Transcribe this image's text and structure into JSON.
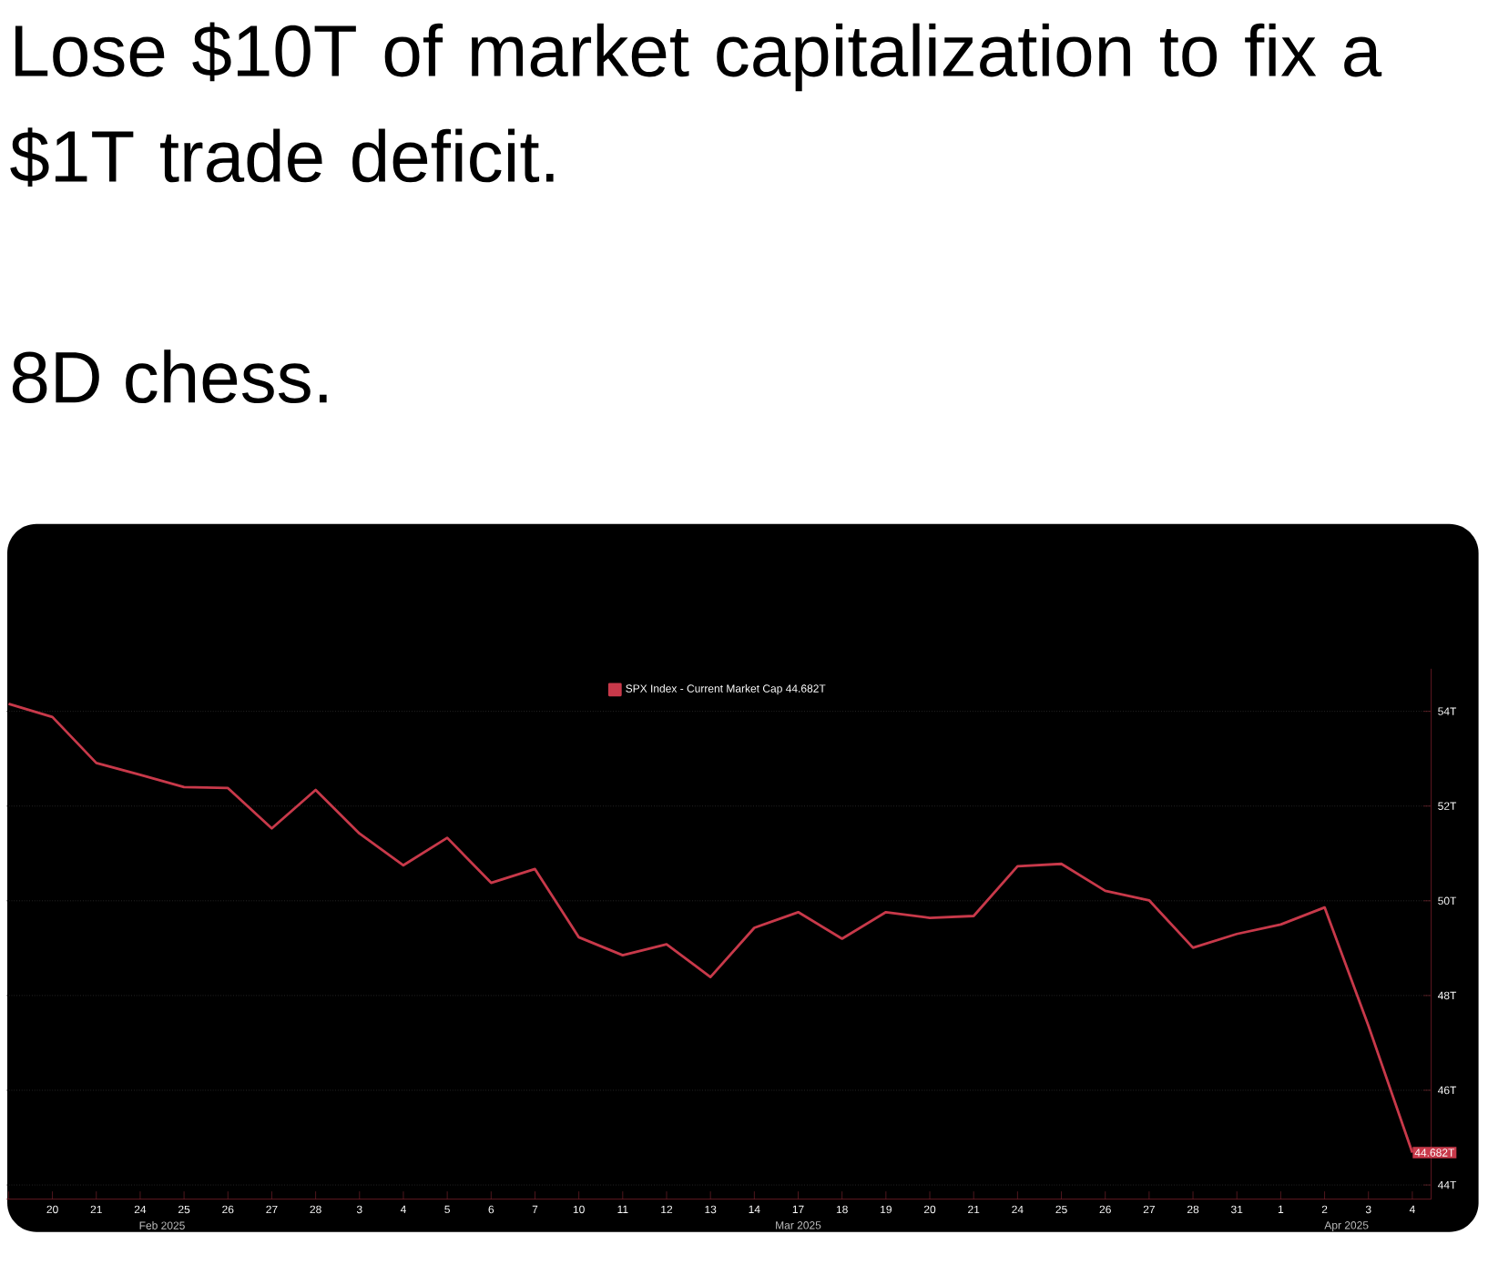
{
  "chart_data": {
    "type": "line",
    "title": "Lose $10T of market capitalization to fix a $1T trade deficit.",
    "subtitle": "8D chess.",
    "categories": [
      null,
      "20",
      "21",
      "24",
      "25",
      "26",
      "27",
      "28",
      "3",
      "4",
      "5",
      "6",
      "7",
      "10",
      "11",
      "12",
      "13",
      "14",
      "17",
      "18",
      "19",
      "20",
      "21",
      "24",
      "25",
      "26",
      "27",
      "28",
      "31",
      "1",
      "2",
      "3",
      "4"
    ],
    "series": [
      {
        "name": "SPX Index - Current Market Cap 44.682T",
        "color": "#c8394a",
        "values": [
          54.16,
          53.88,
          52.91,
          52.66,
          52.4,
          52.38,
          51.53,
          52.34,
          51.42,
          50.75,
          51.33,
          50.38,
          50.67,
          49.23,
          48.85,
          49.08,
          48.39,
          49.43,
          49.76,
          49.2,
          49.76,
          49.64,
          49.68,
          50.73,
          50.78,
          50.21,
          50.01,
          49.01,
          49.3,
          49.5,
          49.86,
          47.36,
          44.682
        ],
        "value_labels": [
          null,
          null,
          null,
          null,
          null,
          null,
          null,
          null,
          null,
          null,
          null,
          null,
          null,
          null,
          null,
          null,
          null,
          null,
          null,
          null,
          null,
          null,
          null,
          null,
          null,
          null,
          null,
          null,
          null,
          null,
          null,
          null,
          "44.682T"
        ]
      }
    ],
    "ylim": [
      43.7,
      54.9
    ],
    "yticks": [
      {
        "value": 44,
        "label": "44T"
      },
      {
        "value": 46,
        "label": "46T"
      },
      {
        "value": 48,
        "label": "48T"
      },
      {
        "value": 50,
        "label": "50T"
      },
      {
        "value": 52,
        "label": "52T"
      },
      {
        "value": 54,
        "label": "54T"
      }
    ],
    "grid": "y",
    "legend": "top",
    "marker": "none",
    "line_style": "solid",
    "annotations": [
      "Feb 2025",
      "Mar 2025",
      "Apr 2025"
    ]
  }
}
